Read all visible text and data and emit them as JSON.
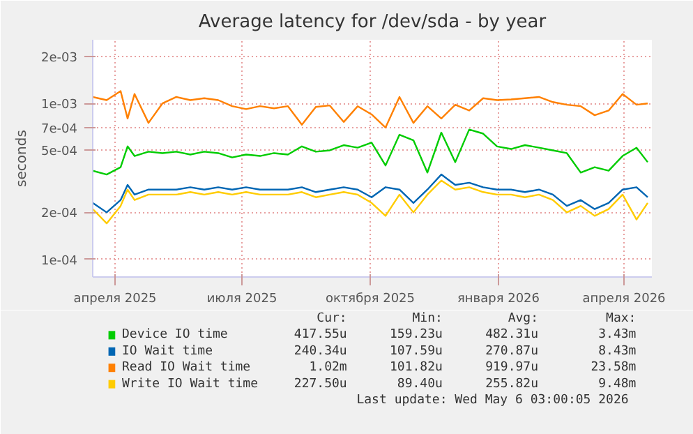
{
  "chart_data": {
    "type": "line",
    "title": "Average latency for /dev/sda - by year",
    "ylabel": "seconds",
    "x": [
      "2025-03-16",
      "2025-03-26",
      "2025-04-05",
      "2025-04-10",
      "2025-04-15",
      "2025-04-25",
      "2025-05-05",
      "2025-05-15",
      "2025-05-25",
      "2025-06-04",
      "2025-06-14",
      "2025-06-24",
      "2025-07-04",
      "2025-07-14",
      "2025-07-24",
      "2025-08-03",
      "2025-08-13",
      "2025-08-23",
      "2025-09-02",
      "2025-09-12",
      "2025-09-22",
      "2025-10-02",
      "2025-10-12",
      "2025-10-22",
      "2025-11-01",
      "2025-11-11",
      "2025-11-21",
      "2025-12-01",
      "2025-12-11",
      "2025-12-21",
      "2025-12-31",
      "2026-01-10",
      "2026-01-20",
      "2026-01-30",
      "2026-02-09",
      "2026-02-19",
      "2026-03-01",
      "2026-03-11",
      "2026-03-21",
      "2026-03-31",
      "2026-04-10",
      "2026-04-18"
    ],
    "series": [
      {
        "name": "Device IO time",
        "color": "#00cc00",
        "values": [
          0.00037,
          0.00035,
          0.00039,
          0.00053,
          0.00046,
          0.00049,
          0.00048,
          0.00049,
          0.00047,
          0.00049,
          0.00048,
          0.00045,
          0.00047,
          0.00046,
          0.00048,
          0.00047,
          0.00053,
          0.00049,
          0.0005,
          0.00054,
          0.00052,
          0.00056,
          0.0004,
          0.00063,
          0.00058,
          0.00036,
          0.00065,
          0.00042,
          0.00068,
          0.00064,
          0.00053,
          0.00051,
          0.00054,
          0.00052,
          0.0005,
          0.00048,
          0.00036,
          0.00039,
          0.00037,
          0.00046,
          0.00052,
          0.00042
        ]
      },
      {
        "name": "IO Wait time",
        "color": "#0066b3",
        "values": [
          0.00023,
          0.0002,
          0.00024,
          0.0003,
          0.00026,
          0.00028,
          0.00028,
          0.00028,
          0.00029,
          0.00028,
          0.00029,
          0.00028,
          0.00029,
          0.00028,
          0.00028,
          0.00028,
          0.00029,
          0.00027,
          0.00028,
          0.00029,
          0.00028,
          0.00025,
          0.00029,
          0.00028,
          0.00023,
          0.00028,
          0.00035,
          0.0003,
          0.00031,
          0.00029,
          0.00028,
          0.00028,
          0.00027,
          0.00028,
          0.00026,
          0.00022,
          0.00024,
          0.00021,
          0.00023,
          0.00028,
          0.00029,
          0.00025
        ]
      },
      {
        "name": "Read IO Wait time",
        "color": "#ff8000",
        "values": [
          0.0011,
          0.00105,
          0.0012,
          0.0008,
          0.00115,
          0.00075,
          0.001,
          0.0011,
          0.00105,
          0.00108,
          0.00105,
          0.00096,
          0.00092,
          0.00096,
          0.00093,
          0.00096,
          0.00073,
          0.00095,
          0.00097,
          0.00076,
          0.00096,
          0.00085,
          0.0007,
          0.0011,
          0.00075,
          0.00096,
          0.0008,
          0.00098,
          0.0009,
          0.00108,
          0.00105,
          0.00106,
          0.00108,
          0.0011,
          0.00102,
          0.00098,
          0.00096,
          0.00084,
          0.0009,
          0.00115,
          0.00098,
          0.001
        ]
      },
      {
        "name": "Write IO Wait time",
        "color": "#ffcc00",
        "values": [
          0.00021,
          0.00017,
          0.00022,
          0.00028,
          0.00024,
          0.00026,
          0.00026,
          0.00026,
          0.00027,
          0.00026,
          0.00027,
          0.00026,
          0.00027,
          0.00026,
          0.00026,
          0.00026,
          0.00027,
          0.00025,
          0.00026,
          0.00027,
          0.00026,
          0.00023,
          0.00019,
          0.00026,
          0.0002,
          0.00026,
          0.00032,
          0.00028,
          0.00029,
          0.00027,
          0.00026,
          0.00026,
          0.00025,
          0.00026,
          0.00024,
          0.0002,
          0.00022,
          0.00019,
          0.00021,
          0.00026,
          0.00018,
          0.00023
        ]
      }
    ],
    "xlim": [
      "2025-03-16",
      "2026-04-21"
    ],
    "xticks": [
      {
        "value": "2025-04-01",
        "label": "апреля 2025"
      },
      {
        "value": "2025-07-01",
        "label": "июля 2025"
      },
      {
        "value": "2025-10-01",
        "label": "октября 2025"
      },
      {
        "value": "2026-01-01",
        "label": "января 2026"
      },
      {
        "value": "2026-04-01",
        "label": "апреля 2026"
      }
    ],
    "log": true,
    "ylim": [
      7.7e-05,
      0.00256
    ],
    "yticks": [
      {
        "value": 0.0001,
        "label": "1e-04"
      },
      {
        "value": 0.0002,
        "label": "2e-04"
      },
      {
        "value": 0.0005,
        "label": "5e-04"
      },
      {
        "value": 0.0007,
        "label": "7e-04"
      },
      {
        "value": 0.001,
        "label": "1e-03"
      },
      {
        "value": 0.002,
        "label": "2e-03"
      }
    ],
    "grid": true,
    "legend": "bottom",
    "annotations": [
      "Cur:",
      "Min:",
      "Avg:",
      "Max:",
      "417.55u",
      "159.23u",
      "482.31u",
      "3.43m",
      "240.34u",
      "107.59u",
      "270.87u",
      "8.43m",
      "1.02m",
      "101.82u",
      "919.97u",
      "23.58m",
      "227.50u",
      "89.40u",
      "255.82u",
      "9.48m",
      "Last update: Wed May  6 03:00:05 2026"
    ]
  }
}
